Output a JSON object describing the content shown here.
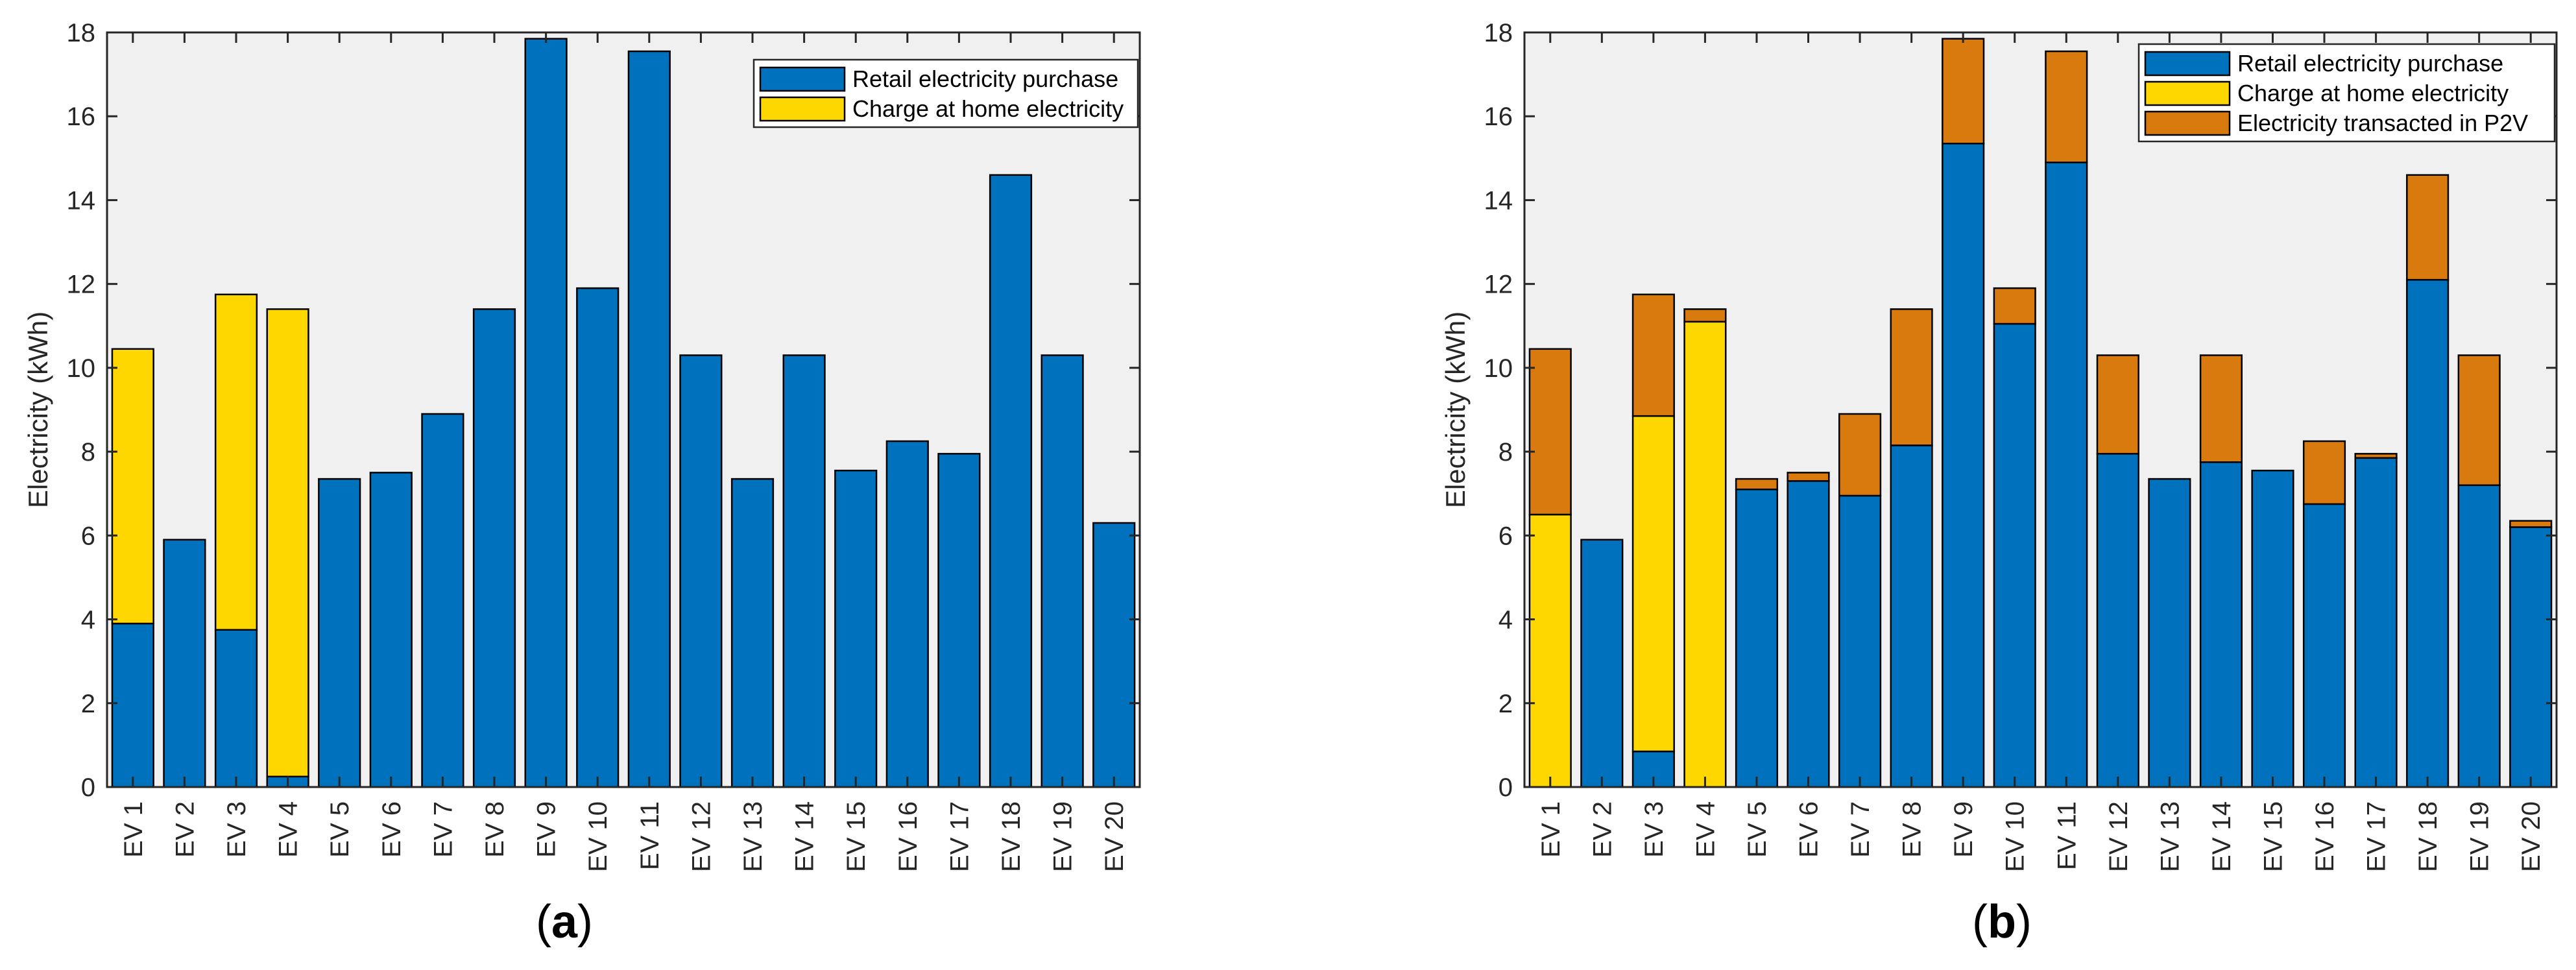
{
  "chart_data": [
    {
      "type": "bar",
      "stacked": true,
      "panel_label": "a",
      "title": "",
      "xlabel": "",
      "ylabel": "Electricity (kWh)",
      "ylim": [
        0,
        18
      ],
      "yticks": [
        0,
        2,
        4,
        6,
        8,
        10,
        12,
        14,
        16,
        18
      ],
      "grid": false,
      "legend_position": "top-right",
      "categories": [
        "EV 1",
        "EV 2",
        "EV 3",
        "EV 4",
        "EV 5",
        "EV 6",
        "EV 7",
        "EV 8",
        "EV 9",
        "EV 10",
        "EV 11",
        "EV 12",
        "EV 13",
        "EV 14",
        "EV 15",
        "EV 16",
        "EV 17",
        "EV 18",
        "EV 19",
        "EV 20"
      ],
      "series": [
        {
          "name": "Retail electricity purchase",
          "color": "#0072BD",
          "values": [
            3.9,
            5.9,
            3.75,
            0.25,
            7.35,
            7.5,
            8.9,
            11.4,
            17.85,
            11.9,
            17.55,
            10.3,
            7.35,
            10.3,
            7.55,
            8.25,
            7.95,
            14.6,
            10.3,
            6.3
          ]
        },
        {
          "name": "Charge at home electricity",
          "color": "#FFD700",
          "values": [
            6.55,
            0,
            8.0,
            11.15,
            0,
            0,
            0,
            0,
            0,
            0,
            0,
            0,
            0,
            0,
            0,
            0,
            0,
            0,
            0,
            0
          ]
        }
      ]
    },
    {
      "type": "bar",
      "stacked": true,
      "panel_label": "b",
      "title": "",
      "xlabel": "",
      "ylabel": "Electricity (kWh)",
      "ylim": [
        0,
        18
      ],
      "yticks": [
        0,
        2,
        4,
        6,
        8,
        10,
        12,
        14,
        16,
        18
      ],
      "grid": false,
      "legend_position": "top-right",
      "categories": [
        "EV 1",
        "EV 2",
        "EV 3",
        "EV 4",
        "EV 5",
        "EV 6",
        "EV 7",
        "EV 8",
        "EV 9",
        "EV 10",
        "EV 11",
        "EV 12",
        "EV 13",
        "EV 14",
        "EV 15",
        "EV 16",
        "EV 17",
        "EV 18",
        "EV 19",
        "EV 20"
      ],
      "series": [
        {
          "name": "Retail electricity purchase",
          "color": "#0072BD",
          "values": [
            0,
            5.9,
            0.85,
            0,
            7.1,
            7.3,
            6.95,
            8.15,
            15.35,
            11.05,
            14.9,
            7.95,
            7.35,
            7.75,
            7.55,
            6.75,
            7.85,
            12.1,
            7.2,
            6.2
          ]
        },
        {
          "name": "Charge at home electricity",
          "color": "#FFD700",
          "values": [
            6.5,
            0,
            8.0,
            11.1,
            0,
            0,
            0,
            0,
            0,
            0,
            0,
            0,
            0,
            0,
            0,
            0,
            0,
            0,
            0,
            0
          ]
        },
        {
          "name": "Electricity transacted in P2V",
          "color": "#D97A0F",
          "values": [
            3.95,
            0,
            2.9,
            0.3,
            0.25,
            0.2,
            1.95,
            3.25,
            2.5,
            0.85,
            2.65,
            2.35,
            0,
            2.55,
            0,
            1.5,
            0.1,
            2.5,
            3.1,
            0.15
          ]
        }
      ]
    }
  ]
}
